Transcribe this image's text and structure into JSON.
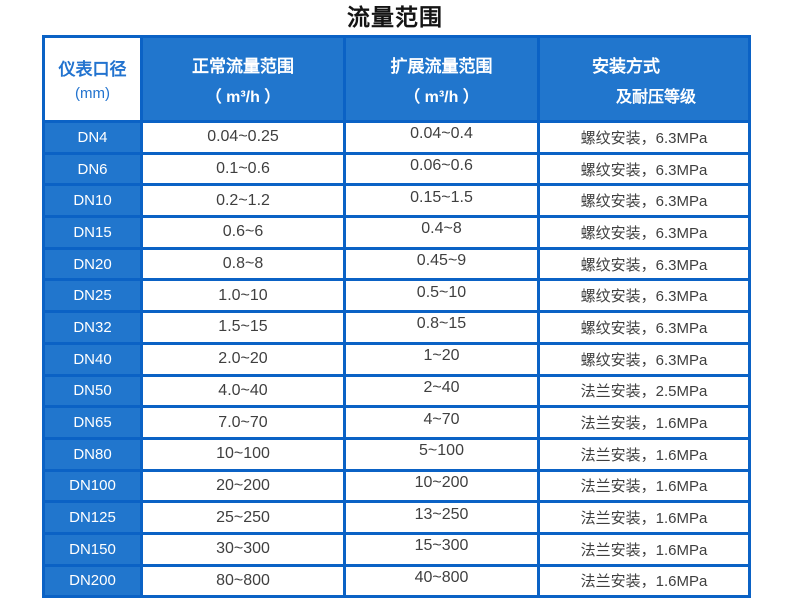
{
  "title": "流量范围",
  "colors": {
    "cell_blue": "#2176cd",
    "border_blue": "#0b62c5",
    "caliber_header_text": "#2273cf",
    "data_text": "#3f3f3f"
  },
  "table": {
    "headers": [
      {
        "line1": "仪表口径",
        "line2": "(mm)"
      },
      {
        "line1": "正常流量范围",
        "line2": "（ m³/h ）"
      },
      {
        "line1": "扩展流量范围",
        "line2": "（ m³/h ）"
      },
      {
        "line1": "安装方式",
        "line2": "及耐压等级"
      }
    ],
    "rows": [
      {
        "dn": "DN4",
        "normal": "0.04~0.25",
        "extended": "0.04~0.4",
        "install": "螺纹安装，6.3MPa"
      },
      {
        "dn": "DN6",
        "normal": "0.1~0.6",
        "extended": "0.06~0.6",
        "install": "螺纹安装，6.3MPa"
      },
      {
        "dn": "DN10",
        "normal": "0.2~1.2",
        "extended": "0.15~1.5",
        "install": "螺纹安装，6.3MPa"
      },
      {
        "dn": "DN15",
        "normal": "0.6~6",
        "extended": "0.4~8",
        "install": "螺纹安装，6.3MPa"
      },
      {
        "dn": "DN20",
        "normal": "0.8~8",
        "extended": "0.45~9",
        "install": "螺纹安装，6.3MPa"
      },
      {
        "dn": "DN25",
        "normal": "1.0~10",
        "extended": "0.5~10",
        "install": "螺纹安装，6.3MPa"
      },
      {
        "dn": "DN32",
        "normal": "1.5~15",
        "extended": "0.8~15",
        "install": "螺纹安装，6.3MPa"
      },
      {
        "dn": "DN40",
        "normal": "2.0~20",
        "extended": "1~20",
        "install": "螺纹安装，6.3MPa"
      },
      {
        "dn": "DN50",
        "normal": "4.0~40",
        "extended": "2~40",
        "install": "法兰安装，2.5MPa"
      },
      {
        "dn": "DN65",
        "normal": "7.0~70",
        "extended": "4~70",
        "install": "法兰安装，1.6MPa"
      },
      {
        "dn": "DN80",
        "normal": "10~100",
        "extended": "5~100",
        "install": "法兰安装，1.6MPa"
      },
      {
        "dn": "DN100",
        "normal": "20~200",
        "extended": "10~200",
        "install": "法兰安装，1.6MPa"
      },
      {
        "dn": "DN125",
        "normal": "25~250",
        "extended": "13~250",
        "install": "法兰安装，1.6MPa"
      },
      {
        "dn": "DN150",
        "normal": "30~300",
        "extended": "15~300",
        "install": "法兰安装，1.6MPa"
      },
      {
        "dn": "DN200",
        "normal": "80~800",
        "extended": "40~800",
        "install": "法兰安装，1.6MPa"
      }
    ]
  }
}
